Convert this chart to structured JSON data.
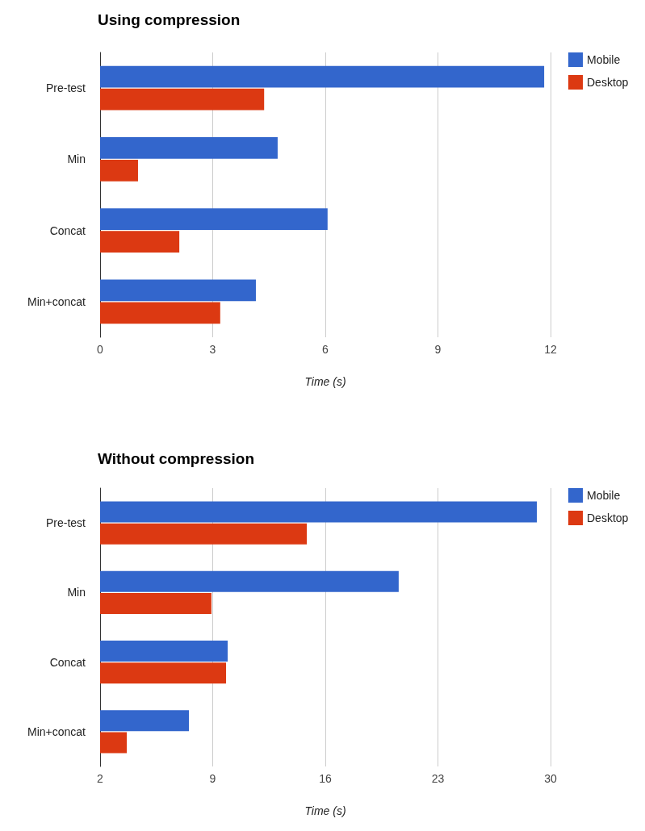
{
  "chart_data": [
    {
      "type": "bar",
      "orientation": "horizontal",
      "title": "Using compression",
      "xlabel": "Time (s)",
      "categories": [
        "Pre-test",
        "Min",
        "Concat",
        "Min+concat"
      ],
      "series": [
        {
          "name": "Mobile",
          "color": "#3366cc",
          "values": [
            11.83,
            4.73,
            6.06,
            4.15
          ]
        },
        {
          "name": "Desktop",
          "color": "#dc3912",
          "values": [
            4.37,
            1.01,
            2.11,
            3.2
          ]
        }
      ],
      "xlim": [
        0,
        12
      ],
      "xticks": [
        0,
        3,
        6,
        9,
        12
      ],
      "grid": "x",
      "legend": "top right"
    },
    {
      "type": "bar",
      "orientation": "horizontal",
      "title": "Without compression",
      "xlabel": "Time (s)",
      "categories": [
        "Pre-test",
        "Min",
        "Concat",
        "Min+concat"
      ],
      "series": [
        {
          "name": "Mobile",
          "color": "#3366cc",
          "values": [
            29.15,
            20.56,
            9.93,
            7.52
          ]
        },
        {
          "name": "Desktop",
          "color": "#dc3912",
          "values": [
            14.85,
            8.92,
            9.83,
            3.66
          ]
        }
      ],
      "xlim": [
        2,
        30
      ],
      "xticks": [
        2,
        9,
        16,
        23,
        30
      ],
      "grid": "x",
      "legend": "top right"
    }
  ]
}
